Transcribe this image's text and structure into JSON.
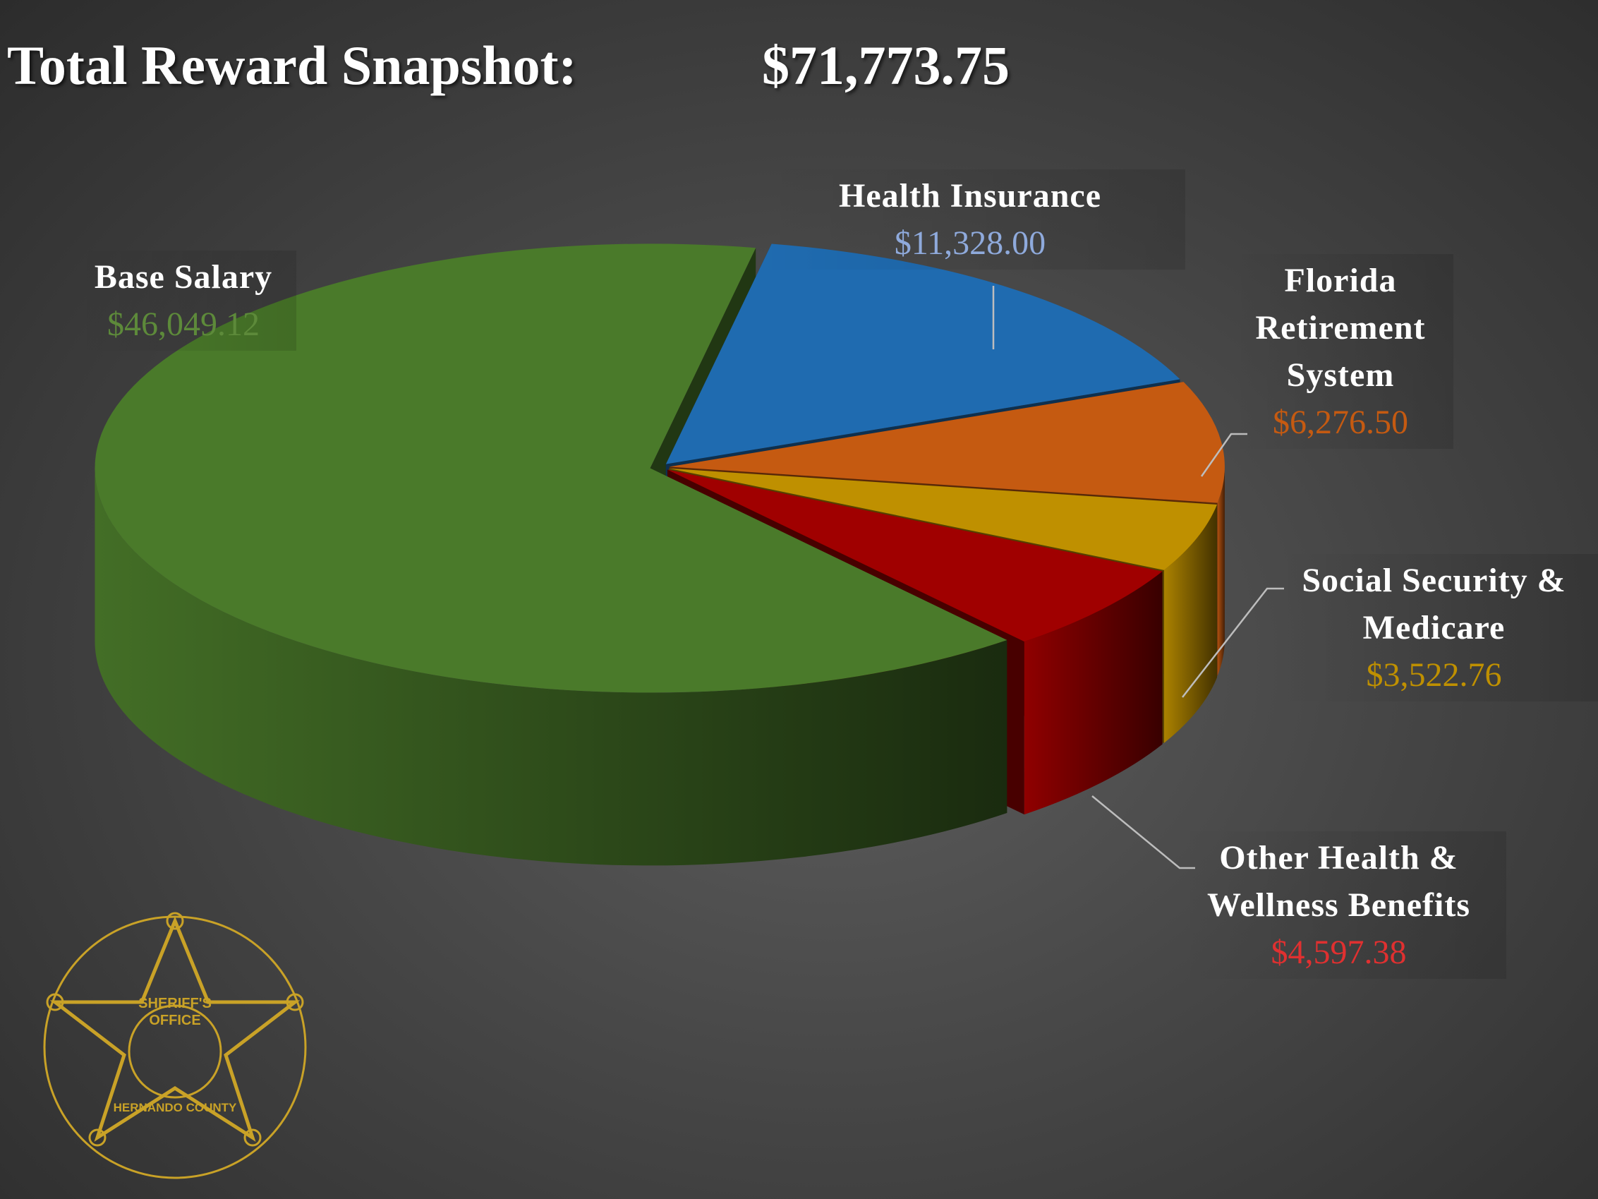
{
  "chart_data": {
    "type": "pie3d",
    "title": "Total Reward Snapshot:",
    "total_label": "$71,773.75",
    "categories": [
      "Base Salary",
      "Health Insurance",
      "Florida Retirement System",
      "Social Security & Medicare",
      "Other Health & Wellness Benefits"
    ],
    "values": [
      46049.12,
      11328.0,
      6276.5,
      3522.76,
      4597.38
    ],
    "value_labels": [
      "$46,049.12",
      "$11,328.00",
      "$6,276.50",
      "$3,522.76",
      "$4,597.38"
    ],
    "colors": [
      "#4a7a2a",
      "#1f6bb0",
      "#c55a11",
      "#bf9000",
      "#a00000"
    ],
    "label_colors": [
      "#5d8a3a",
      "#8faadc",
      "#c55a11",
      "#bf9000",
      "#e03030"
    ]
  },
  "logo": [
    "SHERIFF'S",
    "OFFICE",
    "HERNANDO COUNTY"
  ]
}
